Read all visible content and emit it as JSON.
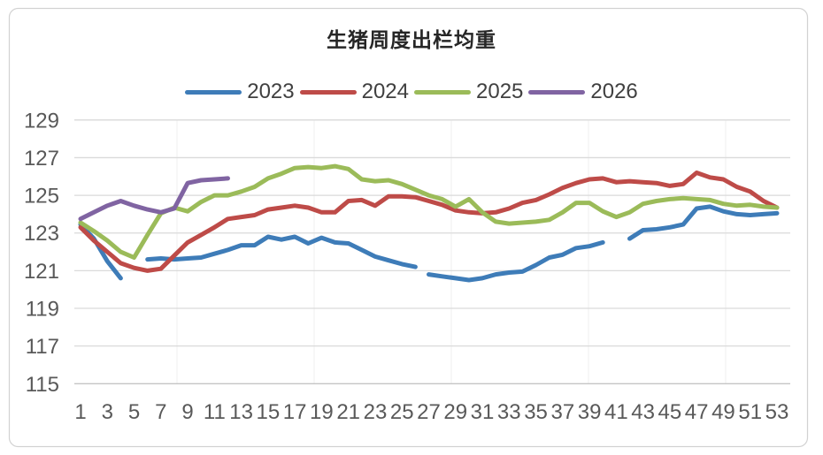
{
  "chart_title": "生猪周度出栏均重",
  "chart_data": {
    "type": "line",
    "title": "生猪周度出栏均重",
    "xlabel": "",
    "ylabel": "",
    "x_axis_weeks": [
      1,
      53
    ],
    "x_tick_labels": [
      1,
      3,
      5,
      7,
      9,
      11,
      13,
      15,
      17,
      19,
      21,
      23,
      25,
      27,
      29,
      31,
      33,
      35,
      37,
      39,
      41,
      43,
      45,
      47,
      49,
      51,
      53
    ],
    "ylim": [
      115,
      129
    ],
    "y_ticks": [
      115,
      117,
      119,
      121,
      123,
      125,
      127,
      129
    ],
    "grid": "horizontal",
    "legend_position": "top",
    "colors": {
      "grid": "#DADADA",
      "axis_bottom": "#C4C4C4",
      "tick_text": "#595959",
      "border": "#D2D2D2"
    },
    "series": [
      {
        "name": "2023",
        "color": "#3E7CB8",
        "segments": [
          [
            [
              1,
              123.45
            ],
            [
              2,
              122.7
            ],
            [
              3,
              121.5
            ],
            [
              4,
              120.6
            ]
          ],
          [
            [
              6,
              121.6
            ],
            [
              7,
              121.65
            ],
            [
              8,
              121.6
            ],
            [
              9,
              121.65
            ],
            [
              10,
              121.7
            ],
            [
              11,
              121.9
            ],
            [
              12,
              122.1
            ],
            [
              13,
              122.35
            ],
            [
              14,
              122.35
            ],
            [
              15,
              122.8
            ],
            [
              16,
              122.65
            ],
            [
              17,
              122.8
            ],
            [
              18,
              122.45
            ],
            [
              19,
              122.75
            ],
            [
              20,
              122.5
            ],
            [
              21,
              122.45
            ],
            [
              22,
              122.1
            ],
            [
              23,
              121.75
            ],
            [
              24,
              121.55
            ],
            [
              25,
              121.35
            ],
            [
              26,
              121.2
            ]
          ],
          [
            [
              27,
              120.8
            ],
            [
              28,
              120.7
            ],
            [
              29,
              120.6
            ],
            [
              30,
              120.5
            ],
            [
              31,
              120.6
            ],
            [
              32,
              120.8
            ],
            [
              33,
              120.9
            ],
            [
              34,
              120.95
            ],
            [
              35,
              121.3
            ],
            [
              36,
              121.7
            ],
            [
              37,
              121.85
            ],
            [
              38,
              122.2
            ],
            [
              39,
              122.3
            ],
            [
              40,
              122.5
            ]
          ],
          [
            [
              42,
              122.7
            ],
            [
              43,
              123.15
            ],
            [
              44,
              123.2
            ],
            [
              45,
              123.3
            ],
            [
              46,
              123.45
            ],
            [
              47,
              124.3
            ],
            [
              48,
              124.4
            ],
            [
              49,
              124.15
            ],
            [
              50,
              124.0
            ],
            [
              51,
              123.95
            ],
            [
              52,
              124.0
            ],
            [
              53,
              124.05
            ]
          ]
        ]
      },
      {
        "name": "2024",
        "color": "#BE4B48",
        "segments": [
          [
            [
              1,
              123.3
            ],
            [
              2,
              122.6
            ],
            [
              3,
              122.0
            ],
            [
              4,
              121.4
            ],
            [
              5,
              121.15
            ],
            [
              6,
              121.0
            ],
            [
              7,
              121.1
            ],
            [
              8,
              121.8
            ],
            [
              9,
              122.5
            ],
            [
              10,
              122.9
            ],
            [
              11,
              123.3
            ],
            [
              12,
              123.75
            ],
            [
              13,
              123.85
            ],
            [
              14,
              123.95
            ],
            [
              15,
              124.25
            ],
            [
              16,
              124.35
            ],
            [
              17,
              124.45
            ],
            [
              18,
              124.35
            ],
            [
              19,
              124.1
            ],
            [
              20,
              124.1
            ],
            [
              21,
              124.7
            ],
            [
              22,
              124.75
            ],
            [
              23,
              124.45
            ],
            [
              24,
              124.95
            ],
            [
              25,
              124.95
            ],
            [
              26,
              124.9
            ],
            [
              27,
              124.7
            ],
            [
              28,
              124.5
            ],
            [
              29,
              124.2
            ],
            [
              30,
              124.1
            ],
            [
              31,
              124.05
            ],
            [
              32,
              124.1
            ],
            [
              33,
              124.3
            ],
            [
              34,
              124.6
            ],
            [
              35,
              124.75
            ],
            [
              36,
              125.05
            ],
            [
              37,
              125.4
            ],
            [
              38,
              125.65
            ],
            [
              39,
              125.85
            ],
            [
              40,
              125.9
            ],
            [
              41,
              125.7
            ],
            [
              42,
              125.75
            ],
            [
              43,
              125.7
            ],
            [
              44,
              125.65
            ],
            [
              45,
              125.5
            ],
            [
              46,
              125.6
            ],
            [
              47,
              126.2
            ],
            [
              48,
              125.95
            ],
            [
              49,
              125.85
            ],
            [
              50,
              125.45
            ],
            [
              51,
              125.2
            ],
            [
              52,
              124.7
            ],
            [
              53,
              124.35
            ]
          ]
        ]
      },
      {
        "name": "2025",
        "color": "#9BBB59",
        "segments": [
          [
            [
              1,
              123.55
            ],
            [
              2,
              123.1
            ],
            [
              3,
              122.6
            ],
            [
              4,
              122.0
            ],
            [
              5,
              121.7
            ],
            [
              6,
              122.9
            ],
            [
              7,
              124.05
            ],
            [
              8,
              124.35
            ],
            [
              9,
              124.15
            ],
            [
              10,
              124.65
            ],
            [
              11,
              125.0
            ],
            [
              12,
              125.0
            ],
            [
              13,
              125.2
            ],
            [
              14,
              125.45
            ],
            [
              15,
              125.9
            ],
            [
              16,
              126.15
            ],
            [
              17,
              126.45
            ],
            [
              18,
              126.5
            ],
            [
              19,
              126.45
            ],
            [
              20,
              126.55
            ],
            [
              21,
              126.4
            ],
            [
              22,
              125.85
            ],
            [
              23,
              125.75
            ],
            [
              24,
              125.8
            ],
            [
              25,
              125.6
            ],
            [
              26,
              125.3
            ],
            [
              27,
              125.0
            ],
            [
              28,
              124.8
            ],
            [
              29,
              124.4
            ],
            [
              30,
              124.8
            ],
            [
              31,
              124.1
            ],
            [
              32,
              123.6
            ],
            [
              33,
              123.5
            ],
            [
              34,
              123.55
            ],
            [
              35,
              123.6
            ],
            [
              36,
              123.7
            ],
            [
              37,
              124.1
            ],
            [
              38,
              124.6
            ],
            [
              39,
              124.6
            ],
            [
              40,
              124.15
            ],
            [
              41,
              123.85
            ],
            [
              42,
              124.1
            ],
            [
              43,
              124.55
            ],
            [
              44,
              124.7
            ],
            [
              45,
              124.8
            ],
            [
              46,
              124.85
            ],
            [
              47,
              124.8
            ],
            [
              48,
              124.75
            ],
            [
              49,
              124.55
            ],
            [
              50,
              124.45
            ],
            [
              51,
              124.5
            ],
            [
              52,
              124.4
            ],
            [
              53,
              124.35
            ]
          ]
        ]
      },
      {
        "name": "2026",
        "color": "#8064A2",
        "segments": [
          [
            [
              1,
              123.75
            ],
            [
              2,
              124.1
            ],
            [
              3,
              124.45
            ],
            [
              4,
              124.7
            ],
            [
              5,
              124.45
            ],
            [
              6,
              124.25
            ],
            [
              7,
              124.1
            ],
            [
              8,
              124.3
            ],
            [
              9,
              125.65
            ],
            [
              10,
              125.8
            ],
            [
              11,
              125.85
            ],
            [
              12,
              125.9
            ]
          ]
        ]
      }
    ]
  }
}
